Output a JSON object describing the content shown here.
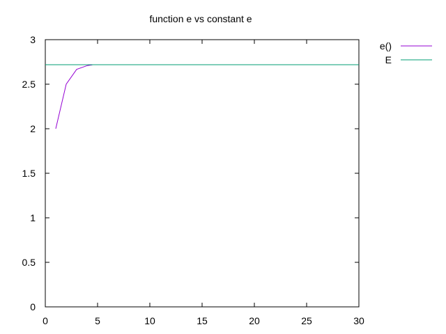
{
  "chart_data": {
    "type": "line",
    "title": "function e vs constant e",
    "xlabel": "",
    "ylabel": "",
    "xlim": [
      0,
      30
    ],
    "ylim": [
      0,
      3
    ],
    "xticks": [
      0,
      5,
      10,
      15,
      20,
      25,
      30
    ],
    "yticks": [
      0,
      0.5,
      1,
      1.5,
      2,
      2.5,
      3
    ],
    "grid": false,
    "legend_position": "right, outside plot",
    "series": [
      {
        "name": "e()",
        "color": "#9400d3",
        "x": [
          1,
          2,
          3,
          4,
          4.5
        ],
        "y": [
          2,
          2.5,
          2.6667,
          2.7083,
          2.7167
        ]
      },
      {
        "name": "E",
        "color": "#009e73",
        "x": [
          0,
          30
        ],
        "y": [
          2.71828,
          2.71828
        ]
      }
    ]
  }
}
